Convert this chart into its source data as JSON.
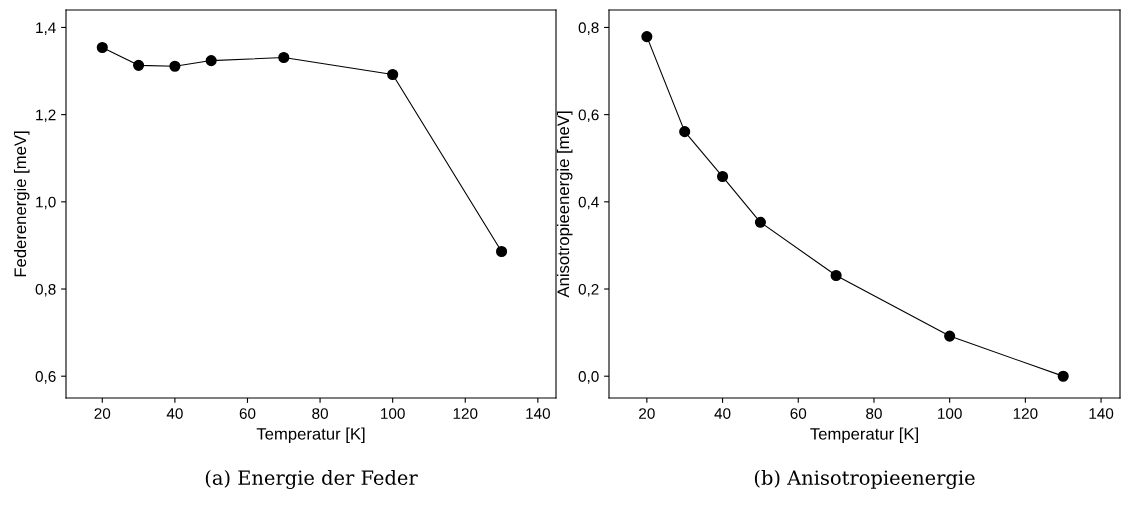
{
  "chart_data": [
    {
      "type": "line",
      "xlabel": "Temperatur [K]",
      "ylabel": "Federenergie [meV]",
      "annotations": [
        "(a) Energie der Feder"
      ],
      "x": [
        20,
        30,
        40,
        50,
        70,
        100,
        130
      ],
      "series": [
        {
          "color": "#000000",
          "values": [
            1.354,
            1.313,
            1.311,
            1.324,
            1.331,
            1.292,
            0.886
          ]
        }
      ],
      "marker": "circle",
      "line_style": "solid",
      "grid": false,
      "legend": false,
      "xlim": [
        10,
        145
      ],
      "xticks": [
        20,
        40,
        60,
        80,
        100,
        120,
        140
      ],
      "ylim": [
        0.55,
        1.44
      ],
      "yticks": [
        {
          "value": 0.6,
          "label": "0,6"
        },
        {
          "value": 0.8,
          "label": "0,8"
        },
        {
          "value": 1.0,
          "label": "1,0"
        },
        {
          "value": 1.2,
          "label": "1,2"
        },
        {
          "value": 1.4,
          "label": "1,4"
        }
      ]
    },
    {
      "type": "line",
      "xlabel": "Temperatur [K]",
      "ylabel": "Anisotropieenergie [meV]",
      "annotations": [
        "(b) Anisotropieenergie"
      ],
      "x": [
        20,
        30,
        40,
        50,
        70,
        100,
        130
      ],
      "series": [
        {
          "color": "#000000",
          "values": [
            0.779,
            0.561,
            0.458,
            0.353,
            0.231,
            0.092,
            0.0
          ]
        }
      ],
      "marker": "circle",
      "line_style": "solid",
      "grid": false,
      "legend": false,
      "xlim": [
        10,
        145
      ],
      "xticks": [
        20,
        40,
        60,
        80,
        100,
        120,
        140
      ],
      "ylim": [
        -0.05,
        0.84
      ],
      "yticks": [
        {
          "value": 0.0,
          "label": "0,0"
        },
        {
          "value": 0.2,
          "label": "0,2"
        },
        {
          "value": 0.4,
          "label": "0,4"
        },
        {
          "value": 0.6,
          "label": "0,6"
        },
        {
          "value": 0.8,
          "label": "0,8"
        }
      ]
    }
  ]
}
